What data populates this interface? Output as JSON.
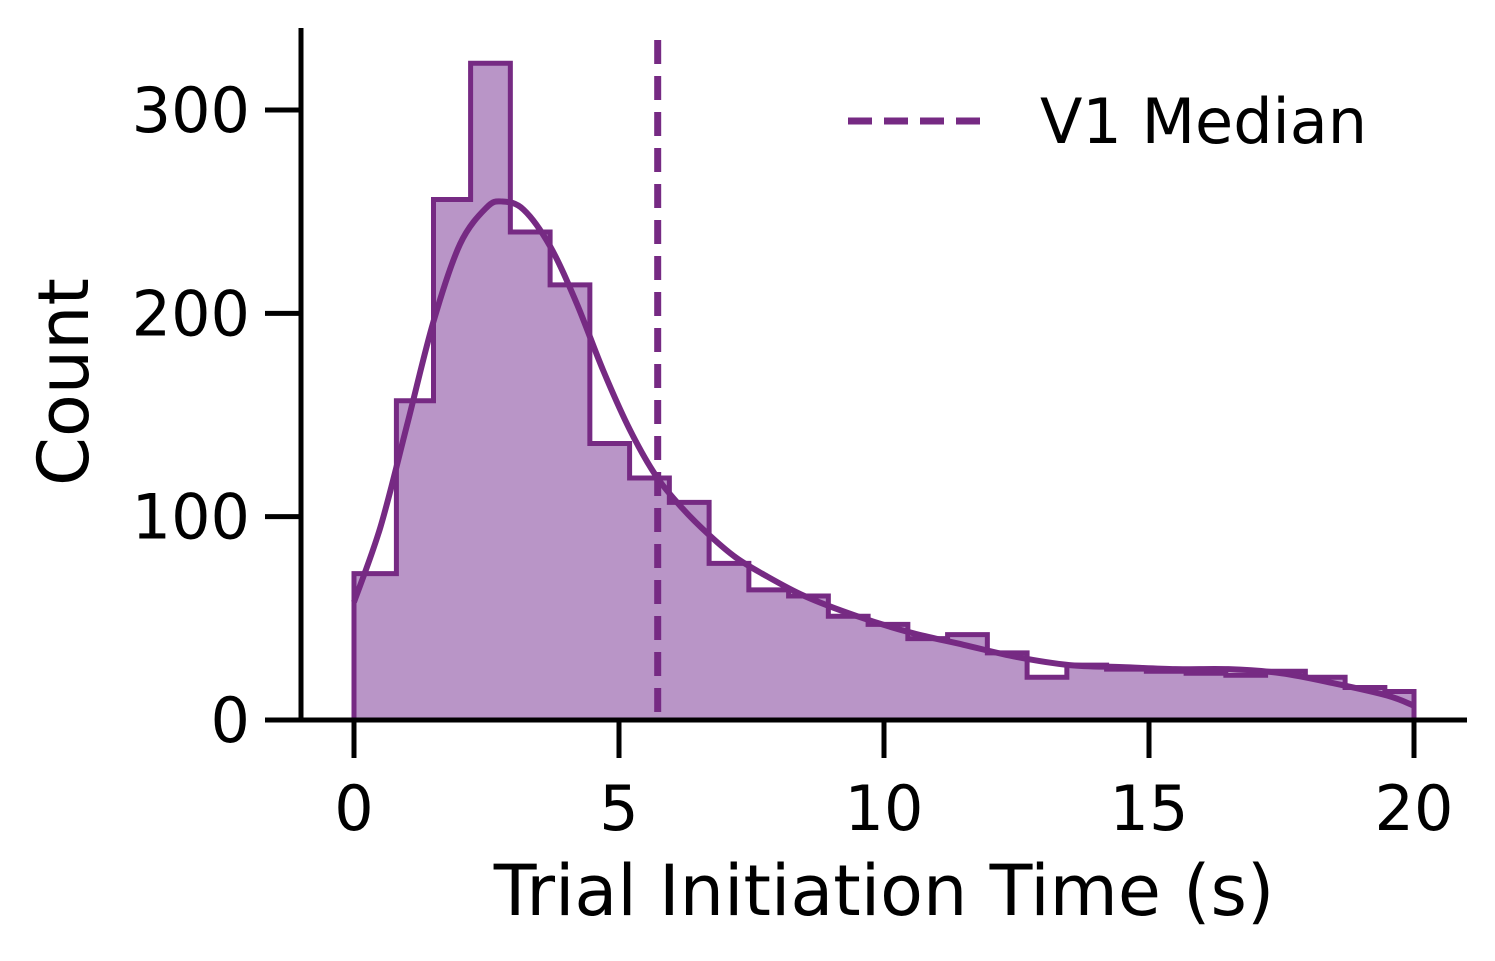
{
  "chart_data": {
    "type": "bar",
    "title": "",
    "xlabel": "Trial Initiation Time (s)",
    "ylabel": "Count",
    "xlim": [
      -1,
      21
    ],
    "ylim": [
      0,
      340
    ],
    "xticks": [
      0,
      5,
      10,
      15,
      20
    ],
    "yticks": [
      0,
      100,
      200,
      300
    ],
    "grid": false,
    "legend_position": "top-right",
    "colors": {
      "line": "#762a83",
      "fill": "#b995c7",
      "axis": "#000000"
    },
    "histogram": {
      "bin_edges": [
        0,
        0.8,
        1.5,
        2.2,
        2.95,
        3.7,
        4.45,
        5.2,
        5.95,
        6.7,
        7.45,
        8.2,
        8.95,
        9.7,
        10.45,
        11.2,
        11.95,
        12.7,
        13.45,
        14.2,
        14.95,
        15.7,
        16.45,
        17.2,
        17.95,
        18.7,
        19.45,
        20
      ],
      "counts": [
        72,
        157,
        256,
        323,
        240,
        214,
        136,
        119,
        107,
        77,
        64,
        61,
        51,
        47,
        40,
        42,
        33,
        21,
        27,
        25,
        24,
        23,
        22,
        24,
        21,
        16,
        14
      ]
    },
    "kde_curve": {
      "x": [
        0,
        0.5,
        1,
        1.5,
        2,
        2.5,
        2.8,
        3.2,
        3.7,
        4.2,
        4.7,
        5.2,
        5.7,
        6.2,
        6.7,
        7.2,
        7.7,
        8.5,
        9.5,
        10.5,
        11.5,
        12.5,
        13.5,
        14.5,
        15.5,
        16.5,
        17.5,
        18.5,
        19.5,
        20
      ],
      "y": [
        58,
        95,
        145,
        196,
        234,
        252,
        255,
        251,
        233,
        205,
        172,
        143,
        120,
        104,
        91,
        80,
        72,
        61,
        51,
        43,
        37,
        31,
        27,
        26,
        25,
        25,
        23,
        18,
        12,
        7
      ]
    },
    "median_line": {
      "x": 5.73,
      "label": "V1 Median",
      "style": "dashed"
    }
  }
}
